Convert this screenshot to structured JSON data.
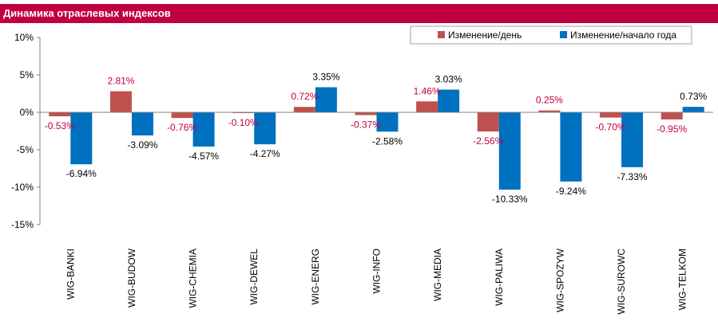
{
  "header": {
    "title": "Динамика отраслевых индексов"
  },
  "chart_data": {
    "type": "bar",
    "title": "Динамика отраслевых индексов",
    "categories": [
      "WIG-BANKI",
      "WIG-BUDOW",
      "WIG-CHEMIA",
      "WIG-DEWEL",
      "WIG-ENERG",
      "WIG-INFO",
      "WIG-MEDIA",
      "WIG-PALIWA",
      "WIG-SPOZYW",
      "WIG-SUROWC",
      "WIG-TELKOM"
    ],
    "series": [
      {
        "name": "Изменение/день",
        "color": "#c0504d",
        "label_color": "#c0003c",
        "values": [
          -0.53,
          2.81,
          -0.76,
          -0.1,
          0.72,
          -0.37,
          1.46,
          -2.56,
          0.25,
          -0.7,
          -0.95
        ],
        "labels": [
          "-0.53%",
          "2.81%",
          "-0.76%",
          "-0.10%",
          "0.72%",
          "-0.37%",
          "1.46%",
          "-2.56%",
          "0.25%",
          "-0.70%",
          "-0.95%"
        ]
      },
      {
        "name": "Изменение/начало года",
        "color": "#0070c0",
        "label_color": "#000000",
        "values": [
          -6.94,
          -3.09,
          -4.57,
          -4.27,
          3.35,
          -2.58,
          3.03,
          -10.33,
          -9.24,
          -7.33,
          0.73
        ],
        "labels": [
          "-6.94%",
          "-3.09%",
          "-4.57%",
          "-4.27%",
          "3.35%",
          "-2.58%",
          "3.03%",
          "-10.33%",
          "-9.24%",
          "-7.33%",
          "0.73%"
        ]
      }
    ],
    "ylim": [
      -15,
      10
    ],
    "yticks": [
      10,
      5,
      0,
      -5,
      -10,
      -15
    ],
    "ytick_labels": [
      "10%",
      "5%",
      "0%",
      "-5%",
      "-10%",
      "-15%"
    ],
    "legend_position": "top-right",
    "grid": false
  }
}
